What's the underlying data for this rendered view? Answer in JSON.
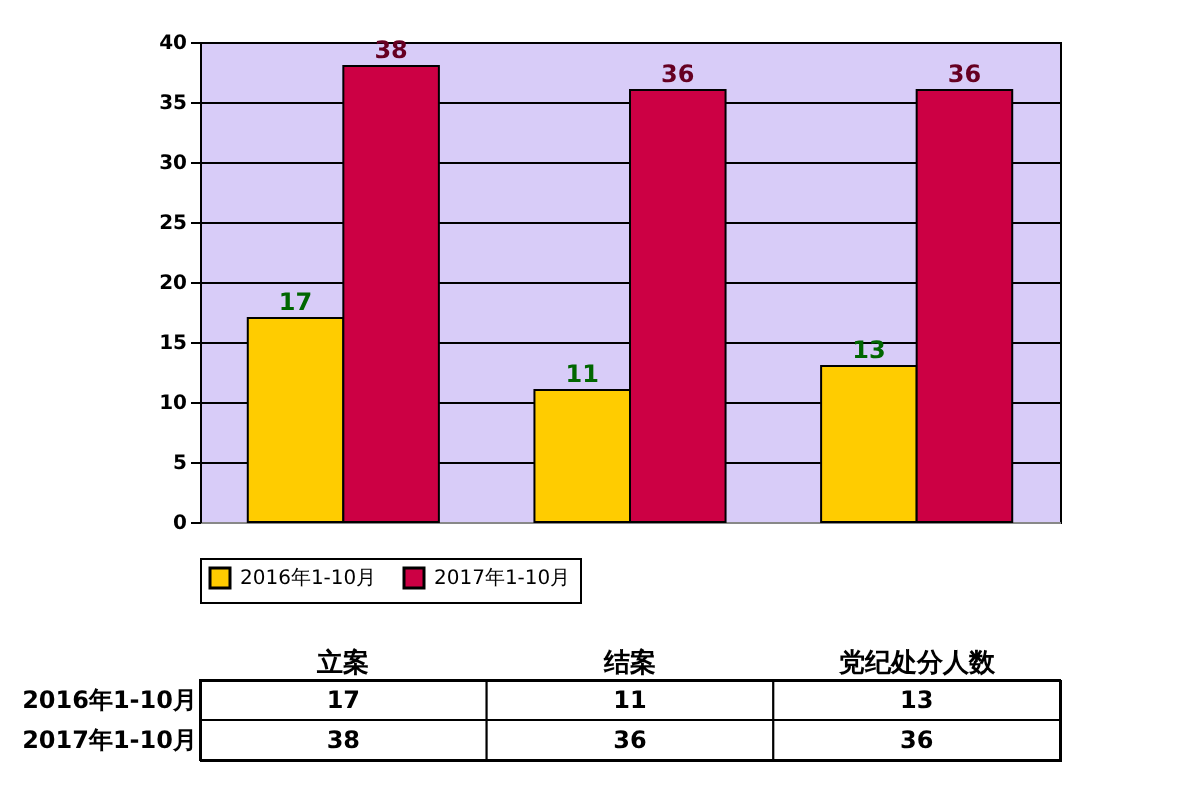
{
  "chart_data": {
    "type": "bar",
    "categories": [
      "立案",
      "结案",
      "党纪处分人数"
    ],
    "series": [
      {
        "name": "2016年1-10月",
        "color": "#ffcc00",
        "values": [
          17,
          11,
          13
        ]
      },
      {
        "name": "2017年1-10月",
        "color": "#cc0044",
        "values": [
          38,
          36,
          36
        ]
      }
    ],
    "ylim": [
      0,
      40
    ],
    "yticks": [
      0,
      5,
      10,
      15,
      20,
      25,
      30,
      35,
      40
    ],
    "grid": "y",
    "data_labels": true,
    "legend": "bottom",
    "annotations": [
      {
        "text": "17",
        "x": "立案",
        "y": 17
      },
      {
        "text": "11",
        "x": "结案",
        "y": 11
      },
      {
        "text": "13",
        "x": "党纪处分人数",
        "y": 13
      },
      {
        "text": "38",
        "x": "立案",
        "y": 38
      },
      {
        "text": "36",
        "x": "结案",
        "y": 36
      },
      {
        "text": "36",
        "x": "党纪处分人数",
        "y": 36
      }
    ]
  }
}
